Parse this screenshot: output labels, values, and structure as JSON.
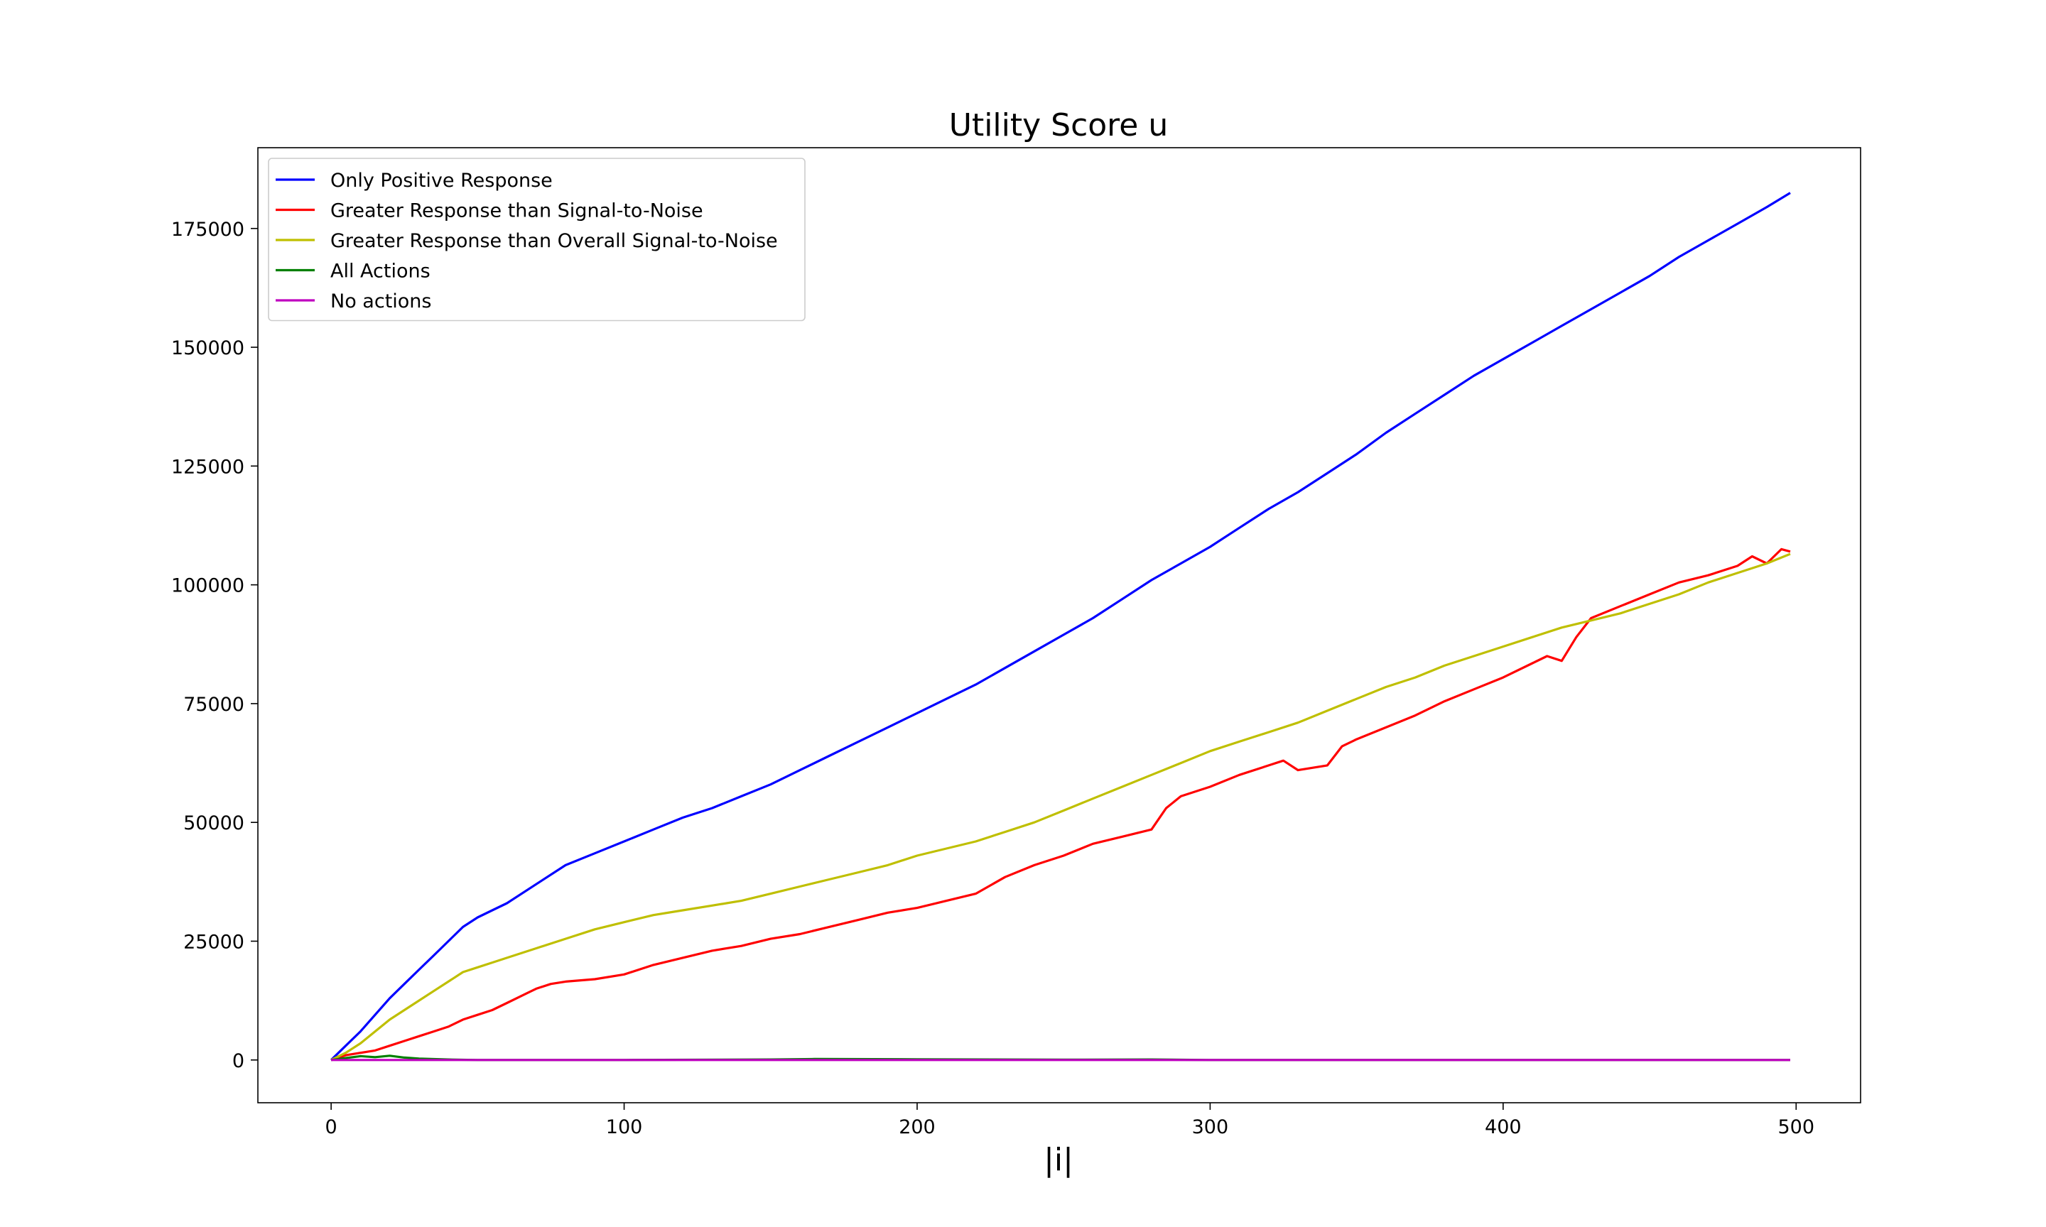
{
  "chart_data": {
    "type": "line",
    "title": "Utility Score u",
    "xlabel": "|i|",
    "ylabel": "",
    "xlim": [
      -25,
      522
    ],
    "ylim": [
      -9000,
      192000
    ],
    "xticks": [
      0,
      100,
      200,
      300,
      400,
      500
    ],
    "yticks": [
      0,
      25000,
      50000,
      75000,
      100000,
      125000,
      150000,
      175000
    ],
    "grid": false,
    "legend_position": "top-left",
    "series": [
      {
        "name": "Only Positive Response",
        "color": "#0000ff",
        "x": [
          0,
          5,
          10,
          15,
          20,
          25,
          30,
          35,
          40,
          45,
          50,
          55,
          60,
          70,
          80,
          90,
          100,
          110,
          120,
          130,
          140,
          150,
          160,
          170,
          180,
          190,
          200,
          210,
          220,
          230,
          240,
          250,
          260,
          270,
          280,
          290,
          300,
          310,
          320,
          330,
          340,
          350,
          360,
          370,
          380,
          390,
          400,
          410,
          420,
          430,
          440,
          450,
          460,
          470,
          480,
          490,
          498
        ],
        "y": [
          0,
          3000,
          6000,
          9500,
          13000,
          16000,
          19000,
          22000,
          25000,
          28000,
          30000,
          31500,
          33000,
          37000,
          41000,
          43500,
          46000,
          48500,
          51000,
          53000,
          55500,
          58000,
          61000,
          64000,
          67000,
          70000,
          73000,
          76000,
          79000,
          82500,
          86000,
          89500,
          93000,
          97000,
          101000,
          104500,
          108000,
          112000,
          116000,
          119500,
          123500,
          127500,
          132000,
          136000,
          140000,
          144000,
          147500,
          151000,
          154500,
          158000,
          161500,
          165000,
          169000,
          172500,
          176000,
          179500,
          182500
        ]
      },
      {
        "name": "Greater Response than Signal-to-Noise",
        "color": "#ff0000",
        "x": [
          0,
          5,
          10,
          15,
          20,
          25,
          30,
          35,
          40,
          45,
          50,
          55,
          60,
          65,
          70,
          75,
          80,
          90,
          100,
          110,
          120,
          130,
          140,
          150,
          160,
          170,
          180,
          190,
          200,
          210,
          220,
          230,
          240,
          250,
          260,
          270,
          280,
          285,
          290,
          300,
          310,
          320,
          325,
          330,
          340,
          345,
          350,
          360,
          370,
          380,
          390,
          400,
          410,
          415,
          420,
          425,
          430,
          440,
          450,
          460,
          470,
          480,
          485,
          490,
          495,
          498
        ],
        "y": [
          0,
          1000,
          1500,
          2000,
          3000,
          4000,
          5000,
          6000,
          7000,
          8500,
          9500,
          10500,
          12000,
          13500,
          15000,
          16000,
          16500,
          17000,
          18000,
          20000,
          21500,
          23000,
          24000,
          25500,
          26500,
          28000,
          29500,
          31000,
          32000,
          33500,
          35000,
          38500,
          41000,
          43000,
          45500,
          47000,
          48500,
          53000,
          55500,
          57500,
          60000,
          62000,
          63000,
          61000,
          62000,
          66000,
          67500,
          70000,
          72500,
          75500,
          78000,
          80500,
          83500,
          85000,
          84000,
          89000,
          93000,
          95500,
          98000,
          100500,
          102000,
          104000,
          106000,
          104500,
          107500,
          107000
        ]
      },
      {
        "name": "Greater Response than Overall Signal-to-Noise",
        "color": "#bfbf00",
        "x": [
          0,
          5,
          10,
          15,
          20,
          25,
          30,
          35,
          40,
          45,
          50,
          55,
          60,
          70,
          80,
          90,
          100,
          110,
          120,
          130,
          140,
          150,
          160,
          170,
          180,
          190,
          200,
          210,
          220,
          230,
          240,
          250,
          260,
          270,
          280,
          290,
          300,
          310,
          320,
          330,
          340,
          350,
          360,
          370,
          380,
          390,
          400,
          410,
          420,
          430,
          440,
          450,
          460,
          470,
          480,
          490,
          498
        ],
        "y": [
          0,
          1500,
          3500,
          6000,
          8500,
          10500,
          12500,
          14500,
          16500,
          18500,
          19500,
          20500,
          21500,
          23500,
          25500,
          27500,
          29000,
          30500,
          31500,
          32500,
          33500,
          35000,
          36500,
          38000,
          39500,
          41000,
          43000,
          44500,
          46000,
          48000,
          50000,
          52500,
          55000,
          57500,
          60000,
          62500,
          65000,
          67000,
          69000,
          71000,
          73500,
          76000,
          78500,
          80500,
          83000,
          85000,
          87000,
          89000,
          91000,
          92500,
          94000,
          96000,
          98000,
          100500,
          102500,
          104500,
          106500
        ]
      },
      {
        "name": "All Actions",
        "color": "#008000",
        "x": [
          0,
          5,
          10,
          15,
          20,
          25,
          30,
          40,
          50,
          100,
          150,
          165,
          200,
          250,
          280,
          300,
          350,
          400,
          450,
          498
        ],
        "y": [
          0,
          400,
          800,
          600,
          900,
          500,
          300,
          100,
          0,
          0,
          100,
          200,
          150,
          50,
          100,
          0,
          0,
          0,
          0,
          0
        ]
      },
      {
        "name": "No actions",
        "color": "#bf00bf",
        "x": [
          0,
          50,
          100,
          150,
          200,
          250,
          300,
          350,
          400,
          450,
          498
        ],
        "y": [
          0,
          0,
          0,
          0,
          0,
          0,
          0,
          0,
          0,
          0,
          0
        ]
      }
    ]
  }
}
